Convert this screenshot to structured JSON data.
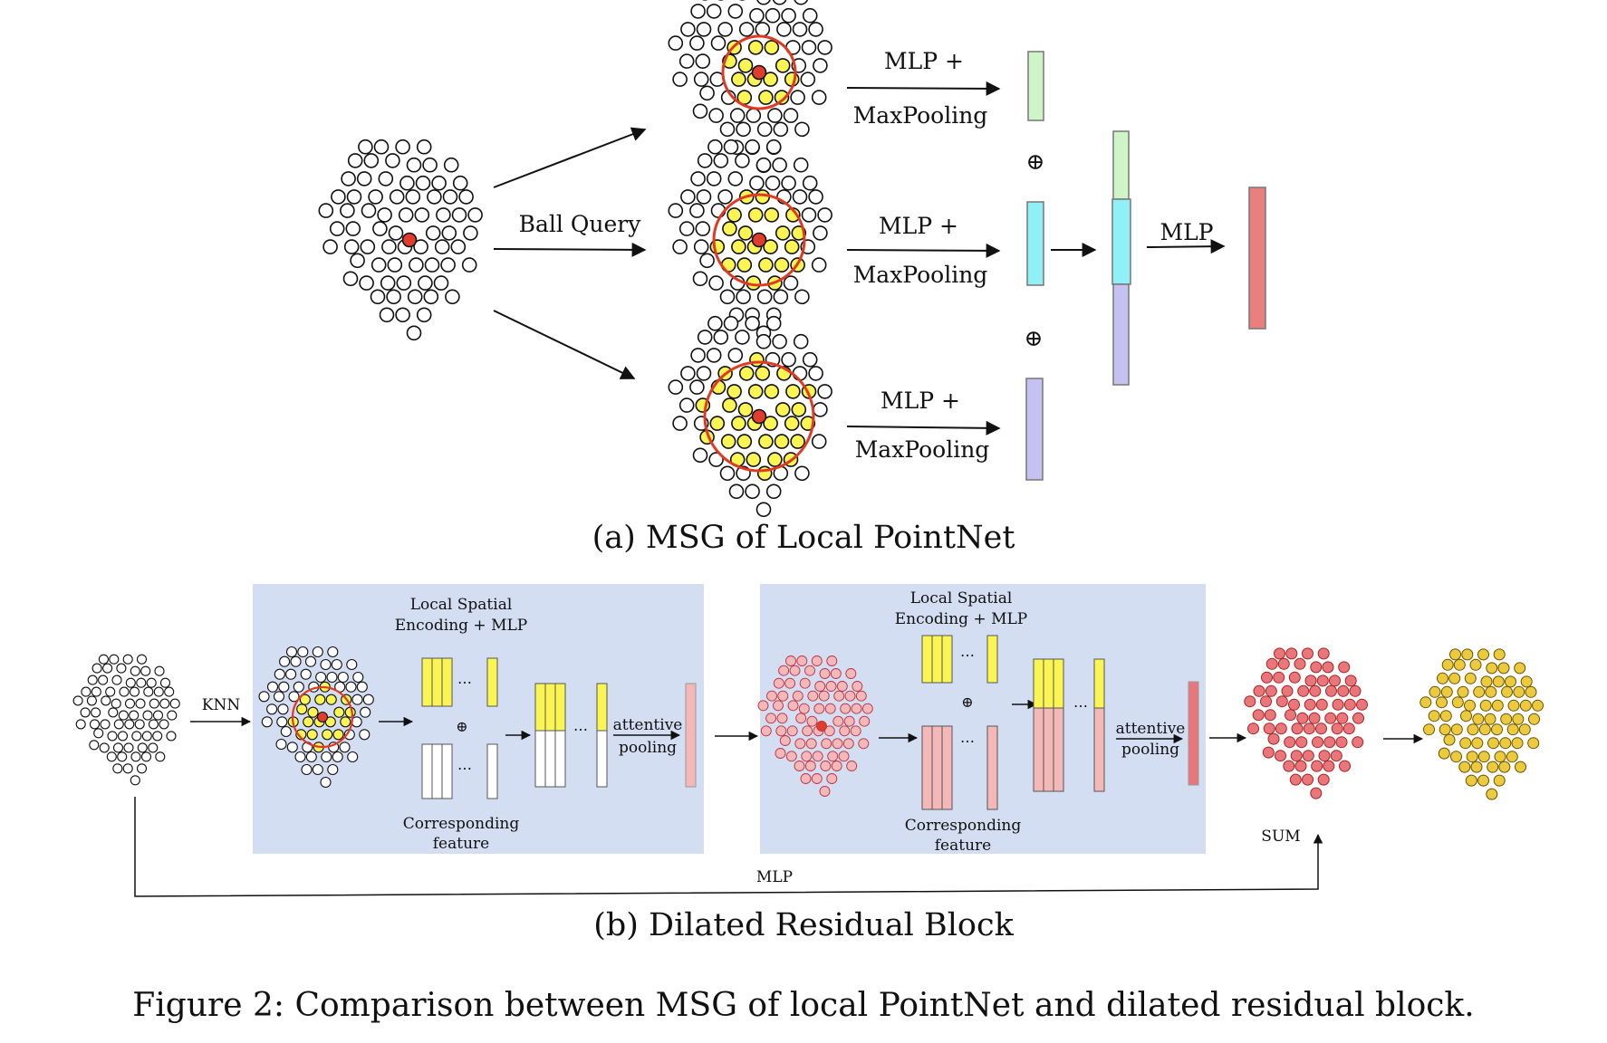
{
  "msg": {
    "ball_query_label": "Ball Query",
    "branches": [
      {
        "mlp_label": "MLP +",
        "pool_label": "MaxPooling",
        "feature_color": "#cdf5c5"
      },
      {
        "mlp_label": "MLP +",
        "pool_label": "MaxPooling",
        "feature_color": "#8ff0f6"
      },
      {
        "mlp_label": "MLP +",
        "pool_label": "MaxPooling",
        "feature_color": "#c5c2f2"
      }
    ],
    "concat_symbol": "⊕",
    "final_mlp_label": "MLP",
    "output_color": "#ea7f7f",
    "caption": "(a) MSG of Local PointNet"
  },
  "drb": {
    "knn_label": "KNN",
    "block1": {
      "title_line1": "Local Spatial",
      "title_line2": "Encoding + MLP",
      "feature_line1": "Corresponding",
      "feature_line2": "feature",
      "pooling_line1": "attentive",
      "pooling_line2": "pooling",
      "ellipsis": "…"
    },
    "block2": {
      "title_line1": "Local Spatial",
      "title_line2": "Encoding + MLP",
      "feature_line1": "Corresponding",
      "feature_line2": "feature",
      "pooling_line1": "attentive",
      "pooling_line2": "pooling",
      "ellipsis": "…"
    },
    "sum_label": "SUM",
    "skip_mlp_label": "MLP",
    "caption": "(b) Dilated Residual Block"
  },
  "figure_caption": "Figure 2: Comparison between MSG of local PointNet and dilated residual block.",
  "colors": {
    "panel_bg": "#d3def2",
    "yellow": "#fbf554",
    "red_point": "#e23c2c",
    "ring": "#e03a22",
    "pink": "#f4b8b8",
    "pink_dark": "#e8767a",
    "gold": "#ecca3e"
  }
}
